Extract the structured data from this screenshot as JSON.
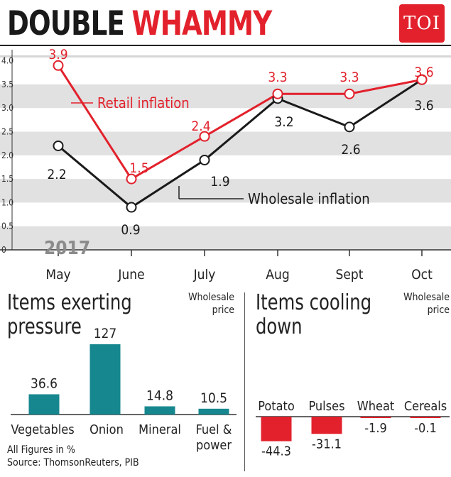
{
  "headline": {
    "word1": "DOUBLE",
    "word2": "WHAMMY"
  },
  "badge": {
    "label": "TOI"
  },
  "colors": {
    "retail": "#e2212c",
    "wholesale": "#1a1a1a",
    "bar_pressure": "#17878f",
    "bar_cooling": "#e2212c",
    "band": "#e1e1e1"
  },
  "chart_data": [
    {
      "type": "line",
      "year_label": "2017",
      "categories": [
        "May",
        "June",
        "July",
        "Aug",
        "Sept",
        "Oct"
      ],
      "yticks": [
        "0",
        "0.5",
        "1.0",
        "1.5",
        "2.0",
        "2.5",
        "3.0",
        "3.5",
        "4.0"
      ],
      "ylim": [
        0,
        4.2
      ],
      "series": [
        {
          "name": "Retail inflation",
          "values": [
            3.9,
            1.5,
            2.4,
            3.3,
            3.3,
            3.6
          ],
          "labels": [
            "3.9",
            "1.5",
            "2.4",
            "3.3",
            "3.3",
            "3.6"
          ]
        },
        {
          "name": "Wholesale inflation",
          "values": [
            2.2,
            0.9,
            1.9,
            3.2,
            2.6,
            3.6
          ],
          "labels": [
            "2.2",
            "0.9",
            "1.9",
            "3.2",
            "2.6",
            "3.6"
          ]
        }
      ]
    },
    {
      "type": "bar",
      "title": "Items exerting pressure",
      "subtitle": "Wholesale price",
      "categories": [
        "Vegetables",
        "Onion",
        "Mineral",
        "Fuel & power"
      ],
      "values": [
        36.6,
        127,
        14.8,
        10.5
      ],
      "labels": [
        "36.6",
        "127",
        "14.8",
        "10.5"
      ]
    },
    {
      "type": "bar",
      "title": "Items cooling down",
      "subtitle": "Wholesale price",
      "categories": [
        "Potato",
        "Pulses",
        "Wheat",
        "Cereals"
      ],
      "values": [
        -44.3,
        -31.1,
        -1.9,
        -0.1
      ],
      "labels": [
        "-44.3",
        "-31.1",
        "-1.9",
        "-0.1"
      ]
    }
  ],
  "left_panel": {
    "title_line1": "Items exerting",
    "title_line2": "pressure",
    "sub_line1": "Wholesale",
    "sub_line2": "price"
  },
  "right_panel": {
    "title_line1": "Items cooling",
    "title_line2": "down",
    "sub_line1": "Wholesale",
    "sub_line2": "price"
  },
  "notes": {
    "units": "All Figures in %",
    "source": "Source: ThomsonReuters, PIB"
  }
}
